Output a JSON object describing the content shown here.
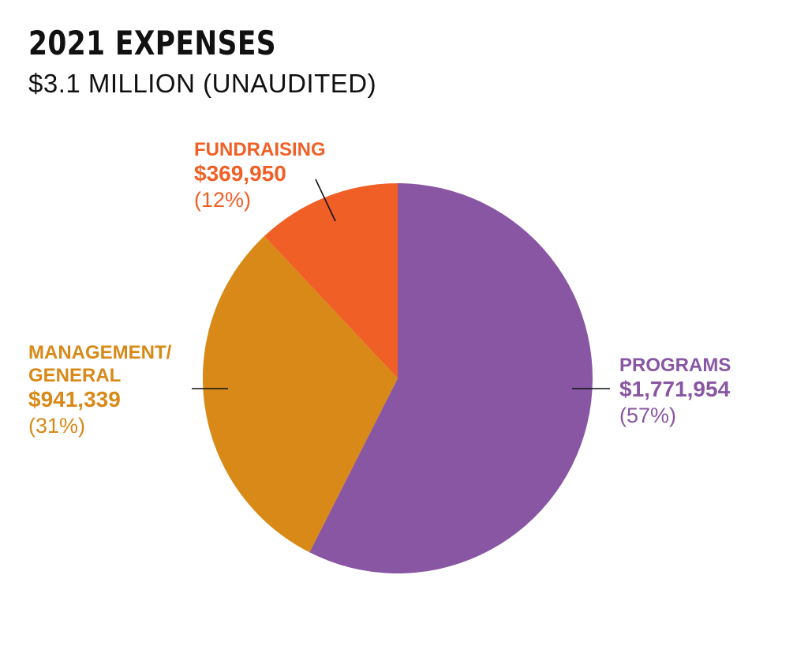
{
  "title": "2021 EXPENSES",
  "subtitle": "$3.1 MILLION (UNAUDITED)",
  "chart_data": {
    "type": "pie",
    "title": "2021 EXPENSES",
    "subtitle": "$3.1 MILLION (UNAUDITED)",
    "slices": [
      {
        "key": "programs",
        "label_lines": [
          "PROGRAMS"
        ],
        "value": 1771954,
        "value_label": "$1,771,954",
        "percent": 57,
        "percent_label": "(57%)",
        "color": "#8856A3"
      },
      {
        "key": "management-general",
        "label_lines": [
          "MANAGEMENT/",
          "GENERAL"
        ],
        "value": 941339,
        "value_label": "$941,339",
        "percent": 31,
        "percent_label": "(31%)",
        "color": "#D88918"
      },
      {
        "key": "fundraising",
        "label_lines": [
          "FUNDRAISING"
        ],
        "value": 369950,
        "value_label": "$369,950",
        "percent": 12,
        "percent_label": "(12%)",
        "color": "#F05F26"
      }
    ],
    "start_angle": "12 o'clock",
    "direction": "clockwise",
    "legend": "none"
  }
}
